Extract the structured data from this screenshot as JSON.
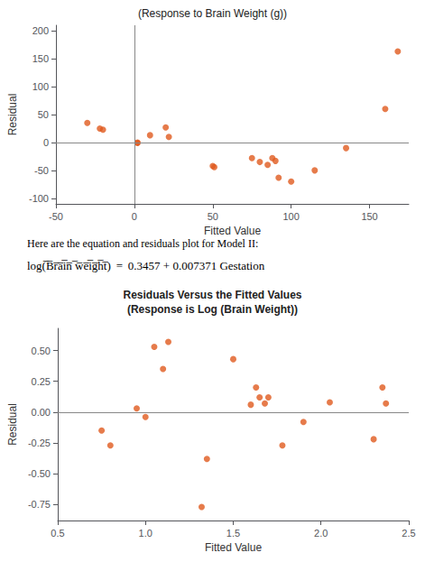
{
  "chart_data": [
    {
      "type": "scatter",
      "title": "(Response to Brain Weight (g))",
      "xlabel": "Fitted Value",
      "ylabel": "Residual",
      "x": [
        -30,
        -22,
        -20,
        2,
        2,
        10,
        20,
        22,
        50,
        51,
        75,
        80,
        85,
        88,
        90,
        92,
        100,
        115,
        135,
        160,
        168
      ],
      "values": [
        35,
        25,
        23,
        0,
        -1,
        13,
        27,
        10,
        -42,
        -44,
        -28,
        -35,
        -40,
        -28,
        -33,
        -63,
        -70,
        -50,
        -10,
        60,
        163
      ],
      "color": "#e05a1e",
      "xlim": [
        -50,
        175
      ],
      "ylim": [
        -110,
        210
      ],
      "xticks": [
        -50,
        0,
        50,
        100,
        150
      ],
      "yticks": [
        -100,
        -50,
        0,
        50,
        100,
        150,
        200
      ],
      "hline_y": 0,
      "vline_x": 0,
      "grid": false,
      "annotations": [
        "Here are the equation and residuals plot for Model II:",
        "log(̅B̅r̅a̅i̅n̅ ̅w̅e̅i̅g̅h̅t̅)  =  0.3457 + 0.007371 Gestation"
      ]
    },
    {
      "type": "scatter",
      "title": "Residuals Versus the Fitted Values",
      "subtitle": "(Response is Log (Brain Weight))",
      "xlabel": "Fitted Value",
      "ylabel": "Residual",
      "x": [
        0.75,
        0.8,
        0.95,
        1.0,
        1.05,
        1.1,
        1.13,
        1.32,
        1.35,
        1.5,
        1.6,
        1.63,
        1.65,
        1.68,
        1.7,
        1.78,
        1.9,
        2.05,
        2.3,
        2.35,
        2.37
      ],
      "values": [
        -0.15,
        -0.27,
        0.03,
        -0.04,
        0.53,
        0.35,
        0.57,
        -0.77,
        -0.38,
        0.43,
        0.06,
        0.2,
        0.12,
        0.07,
        0.12,
        -0.27,
        -0.08,
        0.08,
        -0.22,
        0.2,
        0.07
      ],
      "color": "#e05a1e",
      "xlim": [
        0.5,
        2.5
      ],
      "ylim": [
        -0.88,
        0.68
      ],
      "xticks": [
        0.5,
        {
          "value": 1.0,
          "label": "1.0"
        },
        1.5,
        {
          "value": 2.0,
          "label": "2.0"
        },
        2.5
      ],
      "yticks": [
        -0.75,
        {
          "value": -0.5,
          "label": "-0.50"
        },
        -0.25,
        {
          "value": 0,
          "label": "0.00"
        },
        0.25,
        {
          "value": 0.5,
          "label": "0.50"
        }
      ],
      "hline_y": 0,
      "grid": false
    }
  ]
}
